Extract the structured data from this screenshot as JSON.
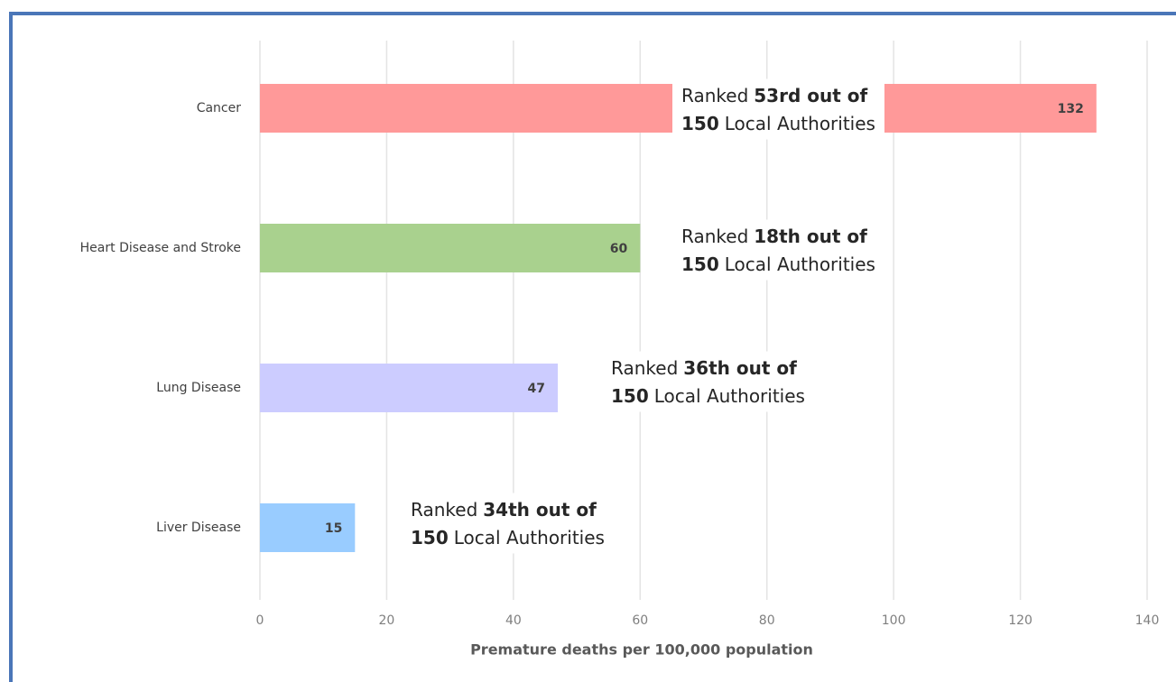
{
  "chart_data": {
    "type": "bar",
    "orientation": "horizontal",
    "categories": [
      "Cancer",
      "Heart Disease and Stroke",
      "Lung Disease",
      "Liver Disease"
    ],
    "values": [
      132,
      60,
      47,
      15
    ],
    "colors": [
      "#ff9999",
      "#a9d18e",
      "#ccccff",
      "#99ccff"
    ],
    "xlabel": "Premature deaths per 100,000 population",
    "xlim": [
      0,
      140
    ],
    "xticks": [
      0,
      20,
      40,
      60,
      80,
      100,
      120,
      140
    ],
    "grid": true,
    "annotations": [
      {
        "lines": [
          [
            {
              "text": "Ranked"
            },
            {
              "text": "53rd out of",
              "bold": true
            }
          ],
          [
            {
              "text": "150",
              "bold": true
            },
            {
              "text": "Local Authorities"
            }
          ]
        ]
      },
      {
        "lines": [
          [
            {
              "text": "Ranked"
            },
            {
              "text": "18th out of",
              "bold": true
            }
          ],
          [
            {
              "text": "150",
              "bold": true
            },
            {
              "text": "Local Authorities"
            }
          ]
        ]
      },
      {
        "lines": [
          [
            {
              "text": "Ranked"
            },
            {
              "text": "36th out of",
              "bold": true
            }
          ],
          [
            {
              "text": "150",
              "bold": true
            },
            {
              "text": "Local Authorities"
            }
          ]
        ]
      },
      {
        "lines": [
          [
            {
              "text": "Ranked"
            },
            {
              "text": "34th out of",
              "bold": true
            }
          ],
          [
            {
              "text": "150",
              "bold": true
            },
            {
              "text": "Local Authorities"
            }
          ]
        ]
      }
    ]
  }
}
